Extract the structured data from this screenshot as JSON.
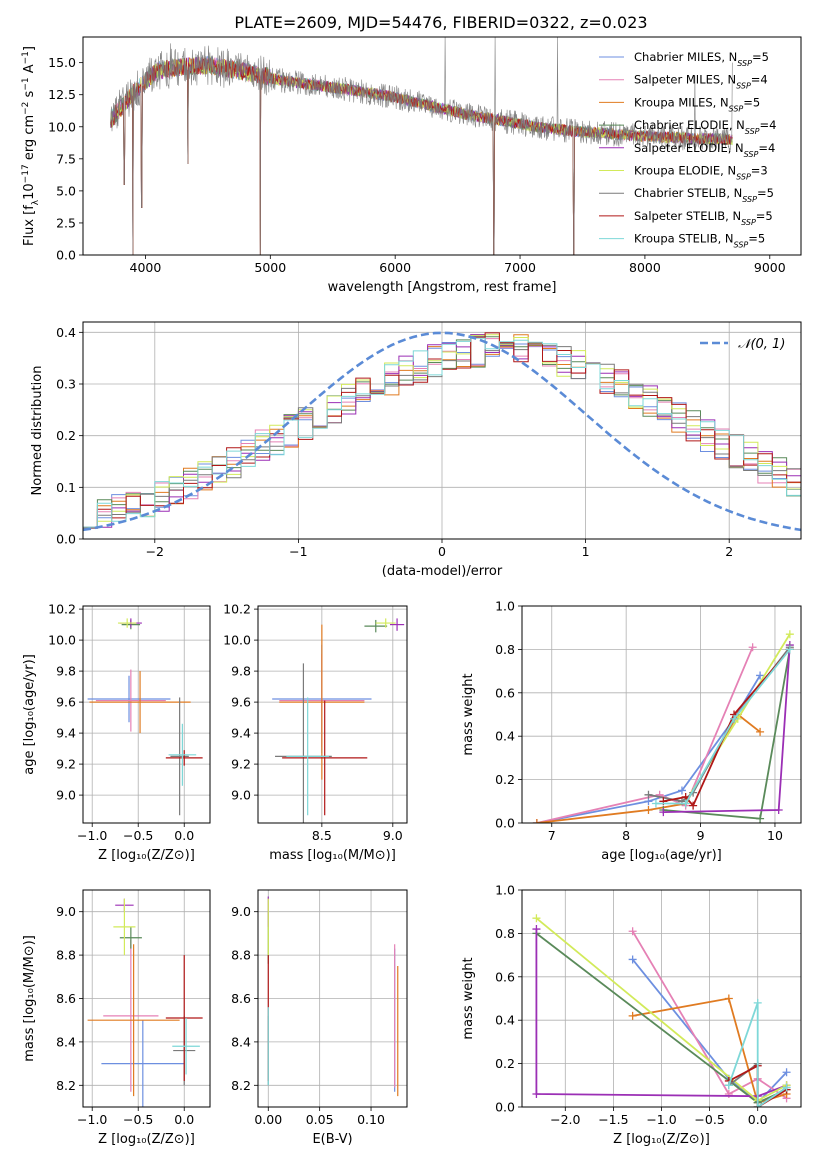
{
  "figure": {
    "title": "PLATE=2609, MJD=54476, FIBERID=0322, z=0.023"
  },
  "colors": {
    "Chabrier MILES": "#6d8fe0",
    "Salpeter MILES": "#e581b5",
    "Kroupa MILES": "#e07b21",
    "Chabrier ELODIE": "#5a8a5a",
    "Salpeter ELODIE": "#9b2fb5",
    "Kroupa ELODIE": "#d2ea5a",
    "Chabrier STELIB": "#7a7a7a",
    "Salpeter STELIB": "#b01717",
    "Kroupa STELIB": "#7ed8d8",
    "normal_curve": "#5b8bd6"
  },
  "chart_data": [
    {
      "id": "spectrum",
      "type": "line",
      "title": "PLATE=2609, MJD=54476, FIBERID=0322, z=0.023",
      "xlabel": "wavelength [Angstrom, rest frame]",
      "ylabel": "Flux [f_λ 10^-17 erg cm^-2 s^-1 A^-1]",
      "xlim": [
        3500,
        9250
      ],
      "ylim": [
        0,
        17
      ],
      "xticks": [
        4000,
        5000,
        6000,
        7000,
        8000,
        9000
      ],
      "yticks": [
        0.0,
        2.5,
        5.0,
        7.5,
        10.0,
        12.5,
        15.0
      ],
      "grid": false,
      "legend_position": "top-right",
      "legend": [
        {
          "model": "Chabrier MILES",
          "nssp": "5"
        },
        {
          "model": "Salpeter MILES",
          "nssp": "4"
        },
        {
          "model": "Kroupa MILES",
          "nssp": "5"
        },
        {
          "model": "Chabrier ELODIE",
          "nssp": "4"
        },
        {
          "model": "Salpeter ELODIE",
          "nssp": "4"
        },
        {
          "model": "Kroupa ELODIE",
          "nssp": "3"
        },
        {
          "model": "Chabrier STELIB",
          "nssp": "5"
        },
        {
          "model": "Salpeter STELIB",
          "nssp": "5"
        },
        {
          "model": "Kroupa STELIB",
          "nssp": "5"
        }
      ],
      "continuum_x": [
        3720,
        3900,
        4100,
        4300,
        4500,
        4800,
        5100,
        5400,
        5700,
        6000,
        6300,
        6600,
        6900,
        7200,
        7500,
        7800,
        8100,
        8400,
        8700
      ],
      "continuum_y": [
        10.5,
        12.6,
        14.4,
        14.7,
        14.8,
        14.3,
        13.6,
        13.2,
        12.8,
        12.3,
        11.6,
        10.9,
        10.4,
        9.9,
        9.6,
        9.4,
        9.2,
        9.1,
        9.0
      ],
      "absorption_dips": [
        {
          "x": 3830,
          "y": 5.5
        },
        {
          "x": 3900,
          "y": 0.0
        },
        {
          "x": 3970,
          "y": 3.7
        },
        {
          "x": 4340,
          "y": 7.1
        },
        {
          "x": 4920,
          "y": 0.0
        },
        {
          "x": 6790,
          "y": 0.0
        },
        {
          "x": 7430,
          "y": 0.0
        }
      ],
      "emission_spikes": [
        {
          "x": 4200,
          "y": 16.5
        },
        {
          "x": 6400,
          "y": 17.0
        },
        {
          "x": 6800,
          "y": 17.0
        },
        {
          "x": 7300,
          "y": 17.0
        },
        {
          "x": 8400,
          "y": 14.0
        },
        {
          "x": 8700,
          "y": 15.0
        }
      ]
    },
    {
      "id": "residuals",
      "type": "line",
      "xlabel": "(data-model)/error",
      "ylabel": "Normed distribution",
      "xlim": [
        -2.5,
        2.5
      ],
      "ylim": [
        0,
        0.42
      ],
      "xticks": [
        -2,
        -1,
        0,
        1,
        2
      ],
      "yticks": [
        0.0,
        0.1,
        0.2,
        0.3,
        0.4
      ],
      "grid": true,
      "legend_position": "top-right",
      "legend": [
        {
          "label": "𝒩(0, 1)"
        }
      ],
      "bin_width": 0.1,
      "bin_start": -2.5,
      "histogram_base": [
        0.035,
        0.045,
        0.055,
        0.065,
        0.075,
        0.085,
        0.095,
        0.105,
        0.12,
        0.135,
        0.15,
        0.165,
        0.18,
        0.195,
        0.21,
        0.225,
        0.24,
        0.255,
        0.27,
        0.285,
        0.3,
        0.31,
        0.325,
        0.335,
        0.345,
        0.355,
        0.36,
        0.365,
        0.37,
        0.37,
        0.365,
        0.36,
        0.355,
        0.345,
        0.335,
        0.32,
        0.31,
        0.295,
        0.28,
        0.265,
        0.25,
        0.235,
        0.22,
        0.2,
        0.185,
        0.17,
        0.155,
        0.14,
        0.125,
        0.11
      ]
    },
    {
      "id": "age_vs_Z",
      "type": "scatter",
      "xlabel": "Z [log₁₀(Z/Z⊙)]",
      "ylabel": "age  [log₁₀(age/yr)]",
      "xlim": [
        -1.1,
        0.28
      ],
      "ylim": [
        8.82,
        10.22
      ],
      "xticks": [
        -1.0,
        -0.5,
        0.0
      ],
      "yticks": [
        9.0,
        9.2,
        9.4,
        9.6,
        9.8,
        10.0,
        10.2
      ],
      "grid": true,
      "points": [
        {
          "model": "Chabrier MILES",
          "x": -0.6,
          "y": 9.62,
          "xerr": 0.45,
          "yerr": 0.15
        },
        {
          "model": "Salpeter MILES",
          "x": -0.58,
          "y": 9.61,
          "xerr": 0.38,
          "yerr": 0.2
        },
        {
          "model": "Kroupa MILES",
          "x": -0.48,
          "y": 9.6,
          "xerr": 0.55,
          "yerr": 0.2
        },
        {
          "model": "Chabrier ELODIE",
          "x": -0.58,
          "y": 10.1,
          "xerr": 0.1,
          "yerr": 0.03
        },
        {
          "model": "Salpeter ELODIE",
          "x": -0.58,
          "y": 10.11,
          "xerr": 0.12,
          "yerr": 0.03
        },
        {
          "model": "Kroupa ELODIE",
          "x": -0.62,
          "y": 10.11,
          "xerr": 0.1,
          "yerr": 0.03
        },
        {
          "model": "Chabrier STELIB",
          "x": -0.05,
          "y": 9.25,
          "xerr": 0.1,
          "yerr": 0.38
        },
        {
          "model": "Salpeter STELIB",
          "x": 0.0,
          "y": 9.24,
          "xerr": 0.2,
          "yerr": 0.05
        },
        {
          "model": "Kroupa STELIB",
          "x": -0.02,
          "y": 9.26,
          "xerr": 0.15,
          "yerr": 0.2
        }
      ]
    },
    {
      "id": "age_vs_mass",
      "type": "scatter",
      "xlabel": "mass [log₁₀(M/M⊙)]",
      "ylabel": "",
      "xlim": [
        8.05,
        9.1
      ],
      "ylim": [
        8.82,
        10.22
      ],
      "xticks": [
        8.5,
        9.0
      ],
      "yticks": [
        9.0,
        9.2,
        9.4,
        9.6,
        9.8,
        10.0,
        10.2
      ],
      "grid": true,
      "points": [
        {
          "model": "Chabrier MILES",
          "x": 8.5,
          "y": 9.62,
          "xerr": 0.35,
          "yerr": 0.35
        },
        {
          "model": "Salpeter MILES",
          "x": 8.5,
          "y": 9.61,
          "xerr": 0.3,
          "yerr": 0.3
        },
        {
          "model": "Kroupa MILES",
          "x": 8.5,
          "y": 9.6,
          "xerr": 0.3,
          "yerr": 0.5
        },
        {
          "model": "Chabrier ELODIE",
          "x": 8.88,
          "y": 10.09,
          "xerr": 0.08,
          "yerr": 0.04
        },
        {
          "model": "Salpeter ELODIE",
          "x": 9.03,
          "y": 10.1,
          "xerr": 0.05,
          "yerr": 0.04
        },
        {
          "model": "Kroupa ELODIE",
          "x": 8.95,
          "y": 10.11,
          "xerr": 0.07,
          "yerr": 0.03
        },
        {
          "model": "Chabrier STELIB",
          "x": 8.37,
          "y": 9.25,
          "xerr": 0.2,
          "yerr": 0.6
        },
        {
          "model": "Salpeter STELIB",
          "x": 8.52,
          "y": 9.24,
          "xerr": 0.3,
          "yerr": 0.37
        },
        {
          "model": "Kroupa STELIB",
          "x": 8.4,
          "y": 9.25,
          "xerr": 0.15,
          "yerr": 0.38
        }
      ]
    },
    {
      "id": "mass_weight_vs_age",
      "type": "line",
      "xlabel": "age  [log₁₀(age/yr)]",
      "ylabel": "mass weight",
      "xlim": [
        6.6,
        10.35
      ],
      "ylim": [
        0,
        1.0
      ],
      "xticks": [
        7,
        8,
        9,
        10
      ],
      "yticks": [
        0.0,
        0.2,
        0.4,
        0.6,
        0.8,
        1.0
      ],
      "grid": true,
      "series": [
        {
          "model": "Chabrier MILES",
          "x": [
            6.8,
            8.3,
            8.75,
            9.45,
            9.8
          ],
          "y": [
            0.0,
            0.1,
            0.15,
            0.48,
            0.68
          ]
        },
        {
          "model": "Salpeter MILES",
          "x": [
            6.8,
            8.45,
            8.8,
            9.7
          ],
          "y": [
            0.0,
            0.13,
            0.08,
            0.81
          ]
        },
        {
          "model": "Kroupa MILES",
          "x": [
            6.8,
            8.3,
            8.8,
            9.5,
            9.8
          ],
          "y": [
            0.0,
            0.06,
            0.09,
            0.5,
            0.42
          ]
        },
        {
          "model": "Chabrier ELODIE",
          "x": [
            8.5,
            9.8,
            10.2
          ],
          "y": [
            0.06,
            0.02,
            0.8
          ]
        },
        {
          "model": "Salpeter ELODIE",
          "x": [
            8.5,
            10.05,
            10.2
          ],
          "y": [
            0.05,
            0.06,
            0.82
          ]
        },
        {
          "model": "Kroupa ELODIE",
          "x": [
            8.8,
            9.5,
            10.2
          ],
          "y": [
            0.1,
            0.48,
            0.87
          ]
        },
        {
          "model": "Chabrier STELIB",
          "x": [
            8.3,
            8.75,
            8.9,
            9.45,
            10.2
          ],
          "y": [
            0.13,
            0.1,
            0.14,
            0.48,
            0.81
          ]
        },
        {
          "model": "Salpeter STELIB",
          "x": [
            8.5,
            8.8,
            8.9,
            9.45,
            10.2
          ],
          "y": [
            0.1,
            0.12,
            0.08,
            0.5,
            0.8
          ]
        },
        {
          "model": "Kroupa STELIB",
          "x": [
            8.4,
            8.8,
            9.45,
            10.2
          ],
          "y": [
            0.09,
            0.09,
            0.48,
            0.8
          ]
        }
      ]
    },
    {
      "id": "mass_vs_Z",
      "type": "scatter",
      "xlabel": "Z [log₁₀(Z/Z⊙)]",
      "ylabel": "mass [log₁₀(M/M⊙)]",
      "xlim": [
        -1.1,
        0.28
      ],
      "ylim": [
        8.1,
        9.1
      ],
      "xticks": [
        -1.0,
        -0.5,
        0.0
      ],
      "yticks": [
        8.2,
        8.4,
        8.6,
        8.8,
        9.0
      ],
      "grid": true,
      "points": [
        {
          "model": "Chabrier MILES",
          "x": -0.45,
          "y": 8.3,
          "xerr": 0.45,
          "yerr": 0.2
        },
        {
          "model": "Salpeter MILES",
          "x": -0.58,
          "y": 8.52,
          "xerr": 0.3,
          "yerr": 0.35
        },
        {
          "model": "Kroupa MILES",
          "x": -0.55,
          "y": 8.5,
          "xerr": 0.5,
          "yerr": 0.35
        },
        {
          "model": "Chabrier ELODIE",
          "x": -0.58,
          "y": 8.88,
          "xerr": 0.12,
          "yerr": 0.05
        },
        {
          "model": "Salpeter ELODIE",
          "x": -0.65,
          "y": 9.03,
          "xerr": 0.1,
          "yerr": 0.03
        },
        {
          "model": "Kroupa ELODIE",
          "x": -0.65,
          "y": 8.93,
          "xerr": 0.12,
          "yerr": 0.13
        },
        {
          "model": "Chabrier STELIB",
          "x": 0.0,
          "y": 8.36,
          "xerr": 0.12,
          "yerr": 0.16
        },
        {
          "model": "Salpeter STELIB",
          "x": 0.0,
          "y": 8.51,
          "xerr": 0.2,
          "yerr": 0.29
        },
        {
          "model": "Kroupa STELIB",
          "x": 0.02,
          "y": 8.38,
          "xerr": 0.15,
          "yerr": 0.13
        }
      ]
    },
    {
      "id": "mass_vs_ebv",
      "type": "scatter",
      "xlabel": "E(B-V)",
      "ylabel": "",
      "xlim": [
        -0.01,
        0.135
      ],
      "ylim": [
        8.1,
        9.1
      ],
      "xticks": [
        0.0,
        0.05,
        0.1
      ],
      "yticks": [
        8.2,
        8.4,
        8.6,
        8.8,
        9.0
      ],
      "grid": true,
      "points": [
        {
          "model": "Chabrier MILES",
          "x": 0.123,
          "y": 8.5,
          "xerr": 0.0,
          "yerr": 0.33
        },
        {
          "model": "Salpeter MILES",
          "x": 0.123,
          "y": 8.52,
          "xerr": 0.0,
          "yerr": 0.33
        },
        {
          "model": "Kroupa MILES",
          "x": 0.126,
          "y": 8.45,
          "xerr": 0.0,
          "yerr": 0.3
        },
        {
          "model": "Chabrier ELODIE",
          "x": 0.0,
          "y": 8.88,
          "xerr": 0.0,
          "yerr": 0.12
        },
        {
          "model": "Salpeter ELODIE",
          "x": 0.0,
          "y": 9.0,
          "xerr": 0.0,
          "yerr": 0.07
        },
        {
          "model": "Kroupa ELODIE",
          "x": 0.0,
          "y": 8.93,
          "xerr": 0.0,
          "yerr": 0.13
        },
        {
          "model": "Chabrier STELIB",
          "x": 0.0,
          "y": 8.36,
          "xerr": 0.0,
          "yerr": 0.16
        },
        {
          "model": "Salpeter STELIB",
          "x": 0.0,
          "y": 8.51,
          "xerr": 0.0,
          "yerr": 0.29
        },
        {
          "model": "Kroupa STELIB",
          "x": 0.0,
          "y": 8.38,
          "xerr": 0.0,
          "yerr": 0.18
        }
      ]
    },
    {
      "id": "mass_weight_vs_Z",
      "type": "line",
      "xlabel": "Z [log₁₀(Z/Z⊙)]",
      "ylabel": "mass weight",
      "xlim": [
        -2.45,
        0.45
      ],
      "ylim": [
        0,
        1.0
      ],
      "xticks": [
        -2.0,
        -1.5,
        -1.0,
        -0.5,
        0.0
      ],
      "yticks": [
        0.0,
        0.2,
        0.4,
        0.6,
        0.8,
        1.0
      ],
      "grid": true,
      "series": [
        {
          "model": "Chabrier MILES",
          "x": [
            -1.3,
            -0.3,
            0.0,
            0.3
          ],
          "y": [
            0.68,
            0.13,
            0.02,
            0.16
          ]
        },
        {
          "model": "Salpeter MILES",
          "x": [
            -1.3,
            -0.3,
            0.0,
            0.3
          ],
          "y": [
            0.81,
            0.06,
            0.13,
            0.04
          ]
        },
        {
          "model": "Kroupa MILES",
          "x": [
            -1.3,
            -0.3,
            0.0,
            0.3
          ],
          "y": [
            0.42,
            0.5,
            0.02,
            0.06
          ]
        },
        {
          "model": "Chabrier ELODIE",
          "x": [
            -2.3,
            0.0,
            0.3
          ],
          "y": [
            0.8,
            0.02,
            0.08
          ]
        },
        {
          "model": "Salpeter ELODIE",
          "x": [
            -2.3,
            -2.3,
            0.0,
            0.3
          ],
          "y": [
            0.82,
            0.06,
            0.05,
            0.1
          ]
        },
        {
          "model": "Kroupa ELODIE",
          "x": [
            -2.3,
            0.0,
            0.3
          ],
          "y": [
            0.87,
            0.03,
            0.1
          ]
        },
        {
          "model": "Chabrier STELIB",
          "x": [
            -0.3,
            0.0,
            0.0,
            0.3
          ],
          "y": [
            0.1,
            0.2,
            0.0,
            0.09
          ]
        },
        {
          "model": "Salpeter STELIB",
          "x": [
            -0.3,
            0.0,
            0.0,
            0.3
          ],
          "y": [
            0.12,
            0.19,
            0.0,
            0.08
          ]
        },
        {
          "model": "Kroupa STELIB",
          "x": [
            -0.3,
            0.0,
            0.0,
            0.3
          ],
          "y": [
            0.1,
            0.48,
            0.0,
            0.09
          ]
        }
      ]
    }
  ]
}
